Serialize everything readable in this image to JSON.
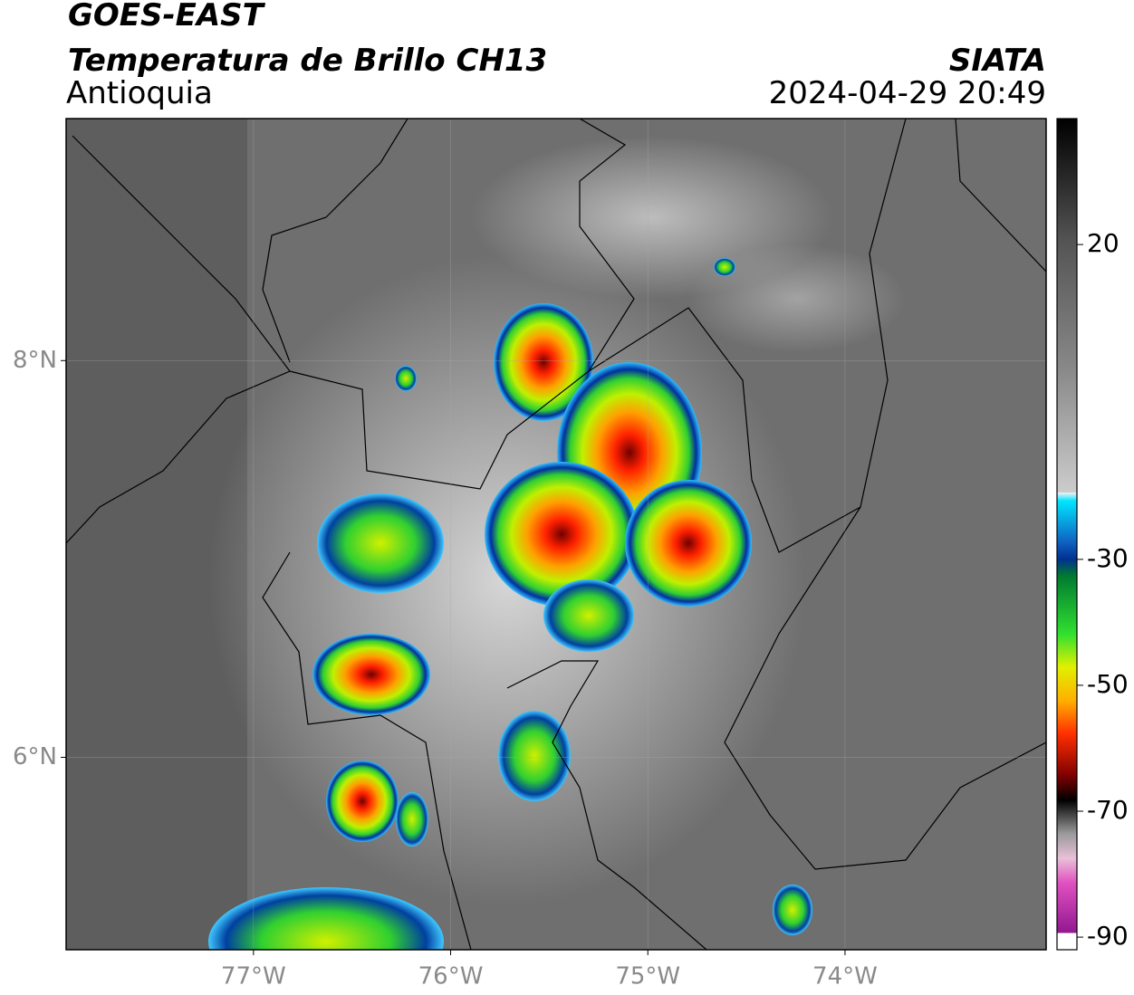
{
  "header": {
    "title": "GOES-EAST",
    "subtitle": "Temperatura de Brillo CH13",
    "region": "Antioquia",
    "agency": "SIATA",
    "datetime": "2024-04-29 20:49"
  },
  "map": {
    "xlim": [
      -77.95,
      -72.98
    ],
    "ylim": [
      5.03,
      9.22
    ],
    "xticks": [
      {
        "value": -77,
        "label": "77°W"
      },
      {
        "value": -76,
        "label": "76°W"
      },
      {
        "value": -75,
        "label": "75°W"
      },
      {
        "value": -74,
        "label": "74°W"
      }
    ],
    "yticks": [
      {
        "value": 6,
        "label": "6°N"
      },
      {
        "value": 8,
        "label": "8°N"
      }
    ]
  },
  "colorbar": {
    "lim": [
      -92,
      40
    ],
    "ticks": [
      20,
      -30,
      -50,
      -70,
      -90
    ]
  }
}
